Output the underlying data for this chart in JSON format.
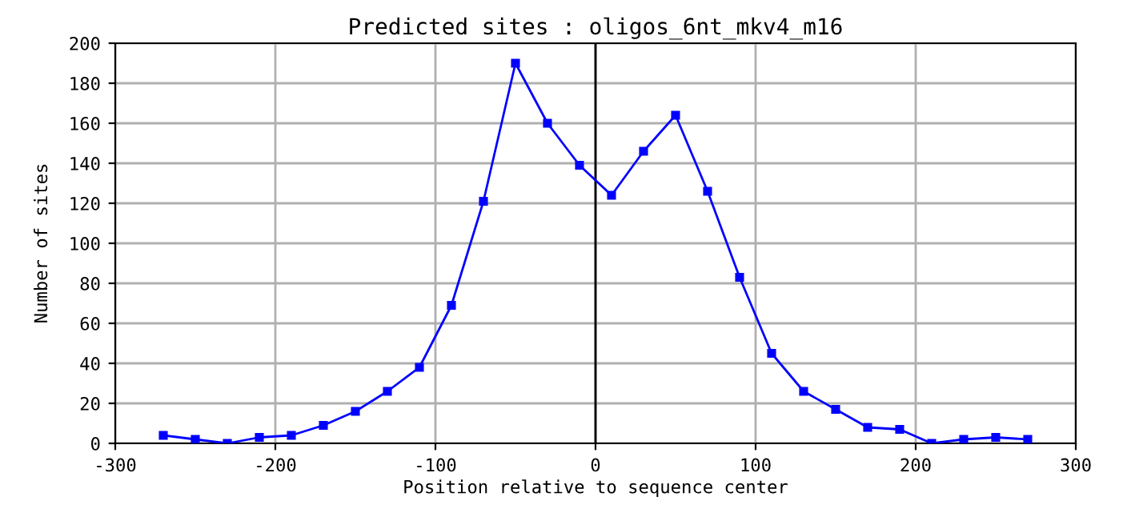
{
  "chart_data": {
    "type": "line",
    "title": "Predicted sites : oligos_6nt_mkv4_m16",
    "xlabel": "Position relative to sequence center",
    "ylabel": "Number of sites",
    "x": [
      -270,
      -250,
      -230,
      -210,
      -190,
      -170,
      -150,
      -130,
      -110,
      -90,
      -70,
      -50,
      -30,
      -10,
      10,
      30,
      50,
      70,
      90,
      110,
      130,
      150,
      170,
      190,
      210,
      230,
      250,
      270
    ],
    "series": [
      {
        "color": "#0000ff",
        "values": [
          4,
          2,
          0,
          3,
          4,
          9,
          16,
          26,
          38,
          69,
          121,
          190,
          160,
          139,
          124,
          146,
          164,
          126,
          83,
          45,
          26,
          17,
          8,
          7,
          0,
          2,
          3,
          2
        ]
      }
    ],
    "xlim": [
      -300,
      300
    ],
    "xticks": [
      -300,
      -200,
      -100,
      0,
      100,
      200,
      300
    ],
    "ylim": [
      0,
      200
    ],
    "yticks": [
      0,
      20,
      40,
      60,
      80,
      100,
      120,
      140,
      160,
      180,
      200
    ],
    "grid": true,
    "marker": "square",
    "line_style": "solid",
    "legend": false,
    "ref_lines": [
      {
        "axis": "x",
        "value": 0,
        "color": "#000000"
      }
    ]
  }
}
